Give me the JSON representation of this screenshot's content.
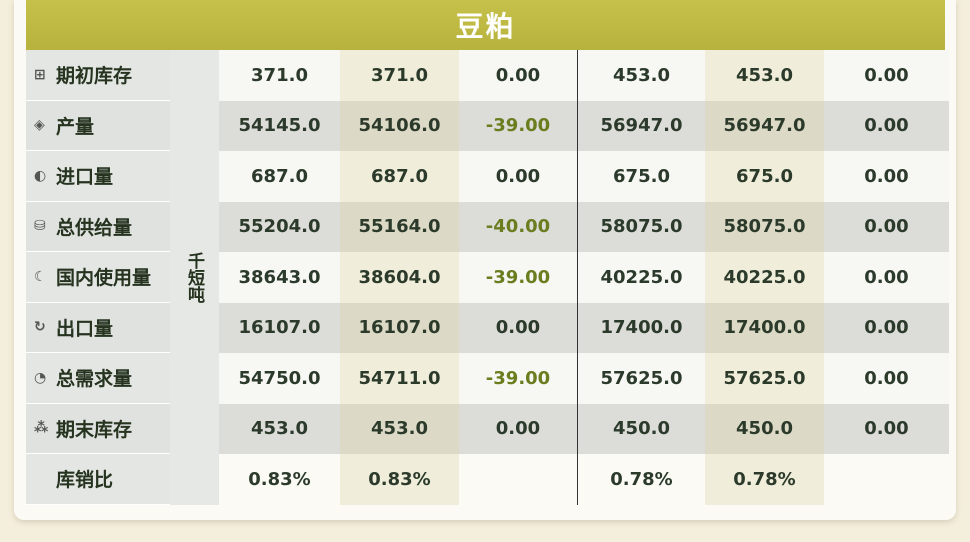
{
  "title": "豆粕",
  "unit": "千短吨",
  "rows": [
    {
      "label": "期初库存",
      "icon": "stack-icon",
      "glyph": "⊞",
      "values": [
        "371.0",
        "371.0",
        "0.00",
        "453.0",
        "453.0",
        "0.00"
      ],
      "neg": [
        false,
        false,
        false,
        false,
        false,
        false
      ]
    },
    {
      "label": "产量",
      "icon": "layers-icon",
      "glyph": "◈",
      "values": [
        "54145.0",
        "54106.0",
        "-39.00",
        "56947.0",
        "56947.0",
        "0.00"
      ],
      "neg": [
        false,
        false,
        true,
        false,
        false,
        false
      ]
    },
    {
      "label": "进口量",
      "icon": "import-icon",
      "glyph": "◐",
      "values": [
        "687.0",
        "687.0",
        "0.00",
        "675.0",
        "675.0",
        "0.00"
      ],
      "neg": [
        false,
        false,
        false,
        false,
        false,
        false
      ]
    },
    {
      "label": "总供给量",
      "icon": "supply-icon",
      "glyph": "⛁",
      "values": [
        "55204.0",
        "55164.0",
        "-40.00",
        "58075.0",
        "58075.0",
        "0.00"
      ],
      "neg": [
        false,
        false,
        true,
        false,
        false,
        false
      ]
    },
    {
      "label": "国内使用量",
      "icon": "moon-icon",
      "glyph": "☾",
      "values": [
        "38643.0",
        "38604.0",
        "-39.00",
        "40225.0",
        "40225.0",
        "0.00"
      ],
      "neg": [
        false,
        false,
        true,
        false,
        false,
        false
      ]
    },
    {
      "label": "出口量",
      "icon": "export-icon",
      "glyph": "↻",
      "values": [
        "16107.0",
        "16107.0",
        "0.00",
        "17400.0",
        "17400.0",
        "0.00"
      ],
      "neg": [
        false,
        false,
        false,
        false,
        false,
        false
      ]
    },
    {
      "label": "总需求量",
      "icon": "pie-icon",
      "glyph": "◔",
      "values": [
        "54750.0",
        "54711.0",
        "-39.00",
        "57625.0",
        "57625.0",
        "0.00"
      ],
      "neg": [
        false,
        false,
        true,
        false,
        false,
        false
      ]
    },
    {
      "label": "期末库存",
      "icon": "boxes-icon",
      "glyph": "⁂",
      "values": [
        "453.0",
        "453.0",
        "0.00",
        "450.0",
        "450.0",
        "0.00"
      ],
      "neg": [
        false,
        false,
        false,
        false,
        false,
        false
      ]
    },
    {
      "label": "库销比",
      "icon": "",
      "glyph": "",
      "values": [
        "0.83%",
        "0.83%",
        "",
        "0.78%",
        "0.78%",
        ""
      ],
      "neg": [
        false,
        false,
        false,
        false,
        false,
        false
      ]
    }
  ],
  "colors": {
    "title_bar": "#bdb842",
    "negative": "#6a7d1f",
    "text": "#2b3a2a"
  }
}
